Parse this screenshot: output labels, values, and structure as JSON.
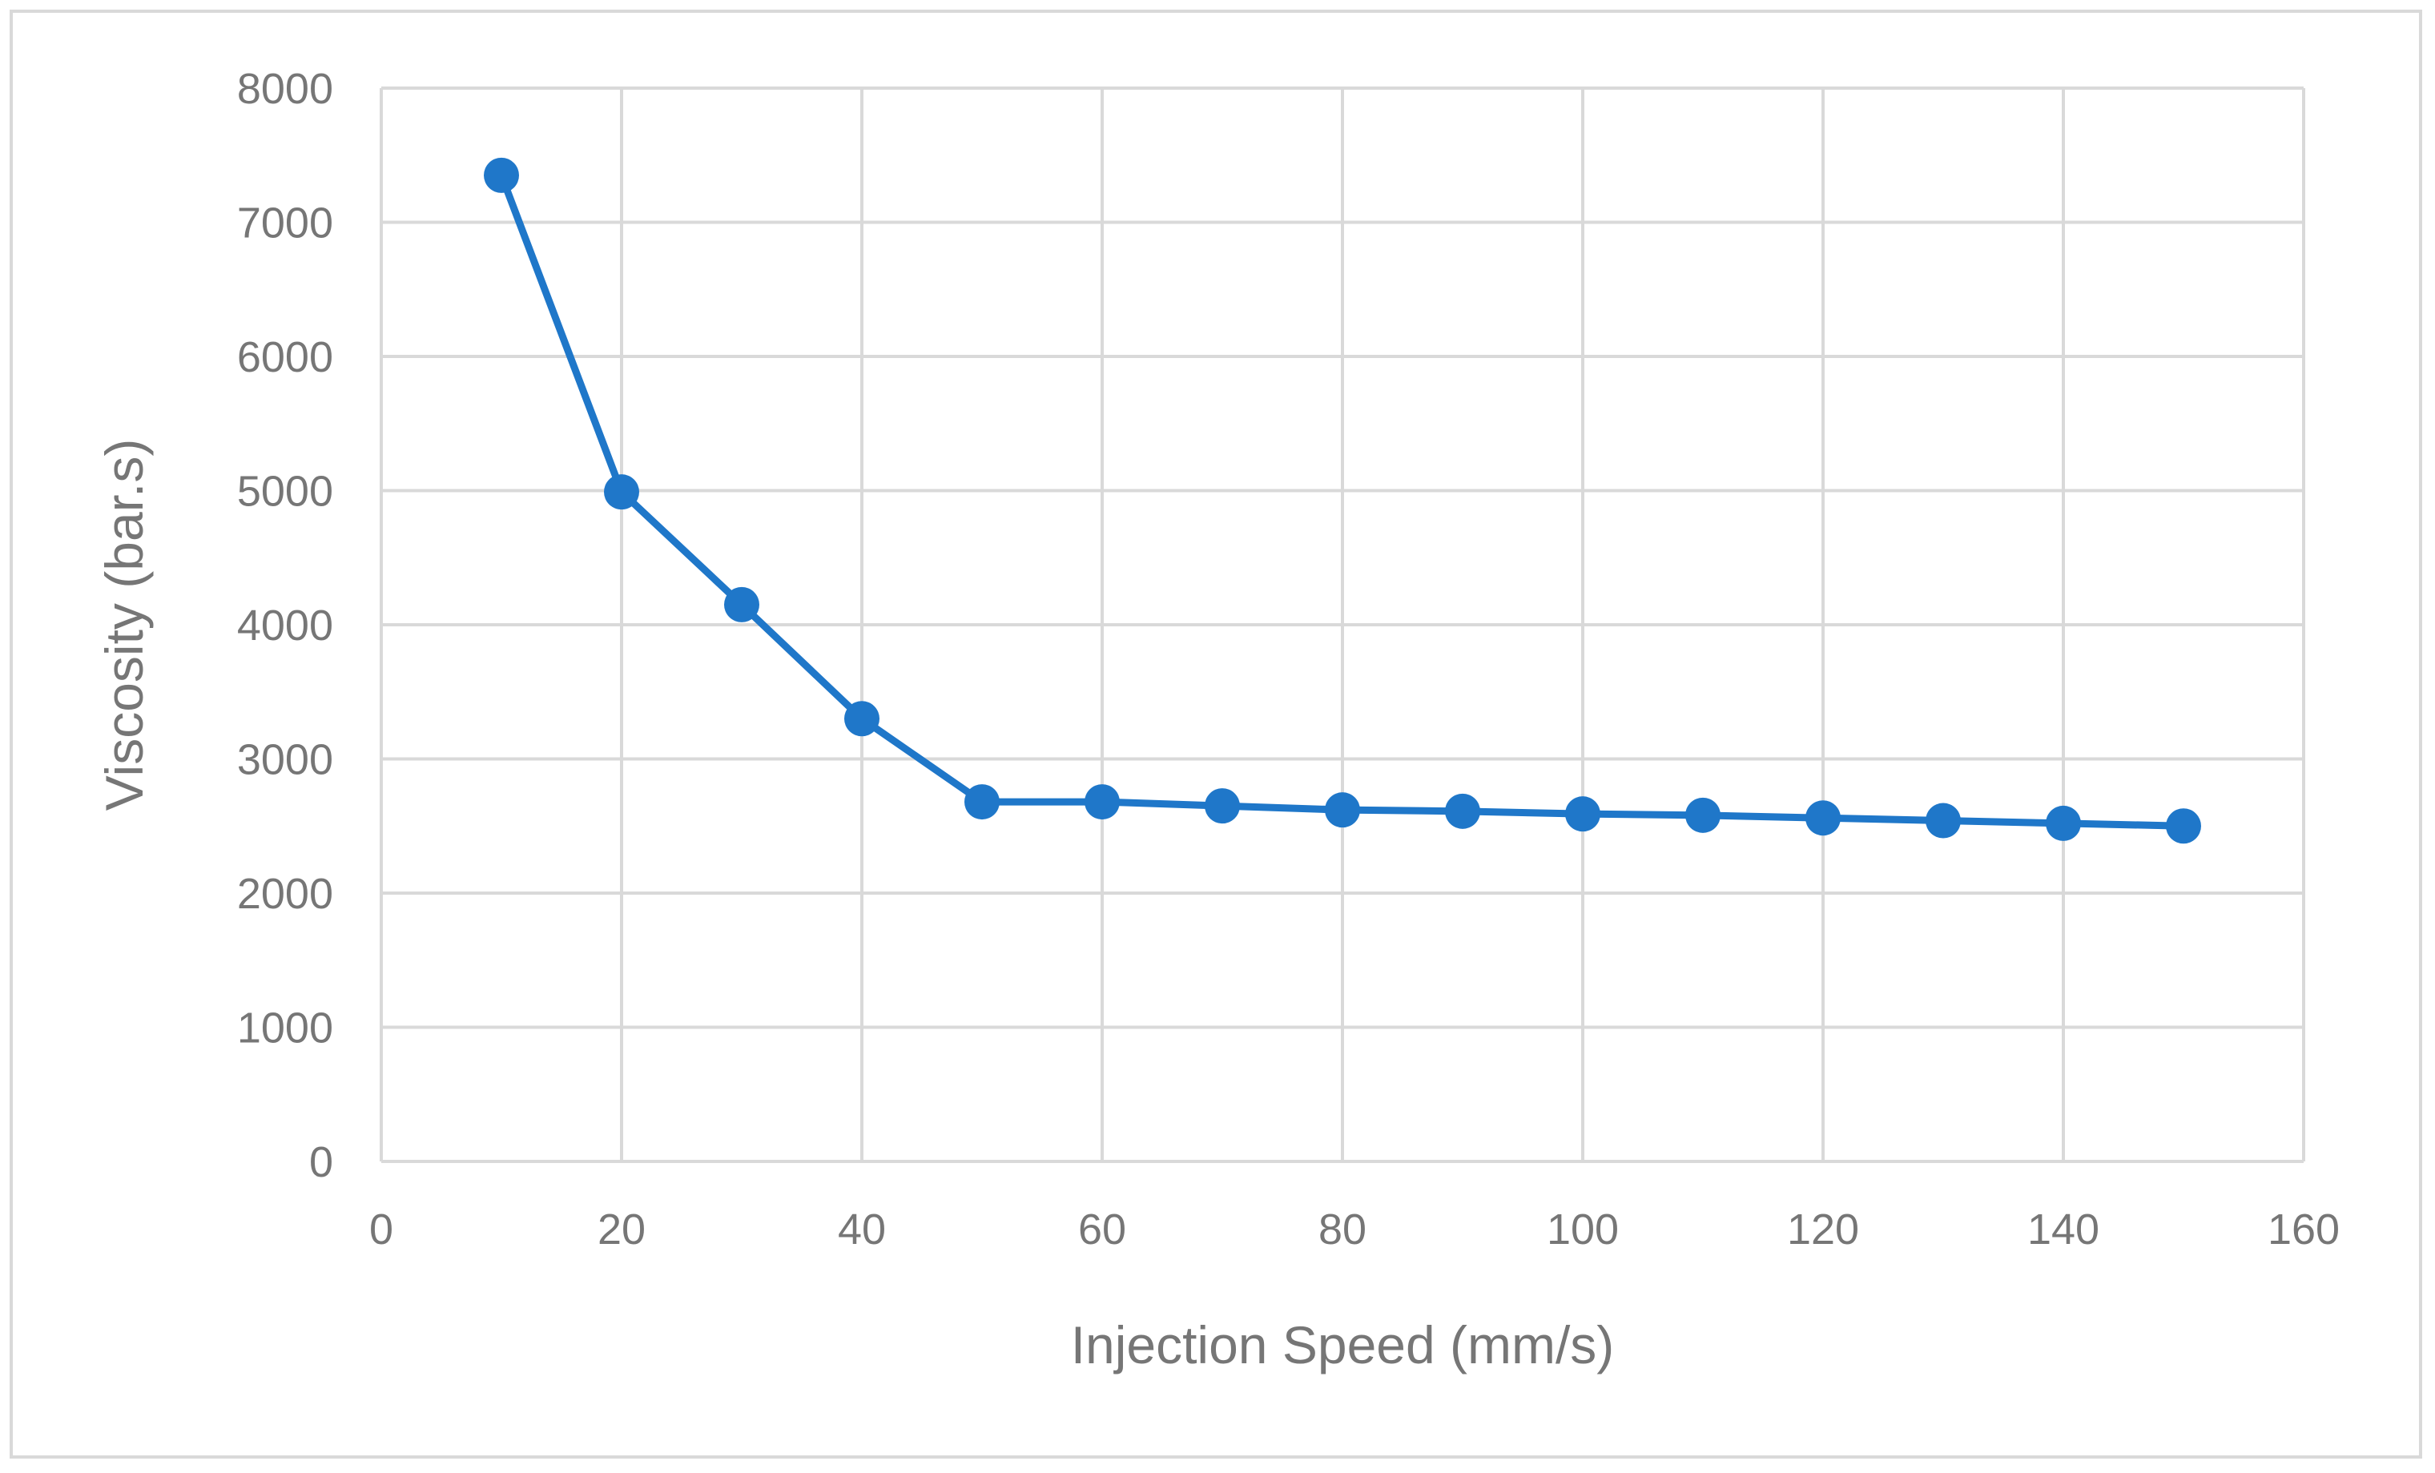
{
  "colors": {
    "series": "#1f77c9",
    "grid": "#d9d9d9",
    "text": "#767676"
  },
  "chart_data": {
    "type": "line",
    "title": "",
    "xlabel": "Injection Speed (mm/s)",
    "ylabel": "Viscosity (bar.s)",
    "xlim": [
      0,
      160
    ],
    "ylim": [
      0,
      8000
    ],
    "x_ticks": [
      "0",
      "20",
      "40",
      "60",
      "80",
      "100",
      "120",
      "140",
      "160"
    ],
    "y_ticks": [
      "0",
      "1000",
      "2000",
      "3000",
      "4000",
      "5000",
      "6000",
      "7000",
      "8000"
    ],
    "grid": true,
    "legend": "none",
    "series": [
      {
        "name": "Viscosity",
        "marker": "circle",
        "x": [
          10,
          20,
          30,
          40,
          50,
          60,
          70,
          80,
          90,
          100,
          110,
          120,
          130,
          140,
          150
        ],
        "y": [
          7350,
          4990,
          4150,
          3300,
          2680,
          2680,
          2650,
          2620,
          2610,
          2590,
          2580,
          2560,
          2540,
          2520,
          2500
        ]
      }
    ]
  }
}
